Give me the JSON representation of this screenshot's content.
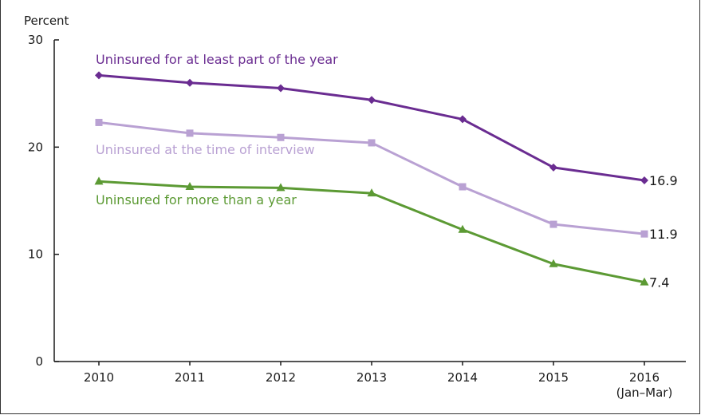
{
  "chart_data": {
    "type": "line",
    "title": "",
    "xlabel": "",
    "ylabel": "Percent",
    "x": [
      "2010",
      "2011",
      "2012",
      "2013",
      "2014",
      "2015",
      "2016"
    ],
    "x_sublabels": [
      "",
      "",
      "",
      "",
      "",
      "",
      "(Jan–Mar)"
    ],
    "ylim": [
      0,
      30
    ],
    "yticks": [
      0,
      10,
      20,
      30
    ],
    "grid": false,
    "series": [
      {
        "name": "Uninsured for at least part of the year",
        "color": "#6a2c91",
        "marker": "diamond",
        "values": [
          26.7,
          26.0,
          25.5,
          24.4,
          22.6,
          18.1,
          16.9
        ],
        "end_label": "16.9"
      },
      {
        "name": "Uninsured at the time of interview",
        "color": "#b9a1d3",
        "marker": "square",
        "values": [
          22.3,
          21.3,
          20.9,
          20.4,
          16.3,
          12.8,
          11.9
        ],
        "end_label": "11.9"
      },
      {
        "name": "Uninsured for more than a year",
        "color": "#5c9a34",
        "marker": "triangle",
        "values": [
          16.8,
          16.3,
          16.2,
          15.7,
          12.3,
          9.1,
          7.4
        ],
        "end_label": "7.4"
      }
    ]
  }
}
